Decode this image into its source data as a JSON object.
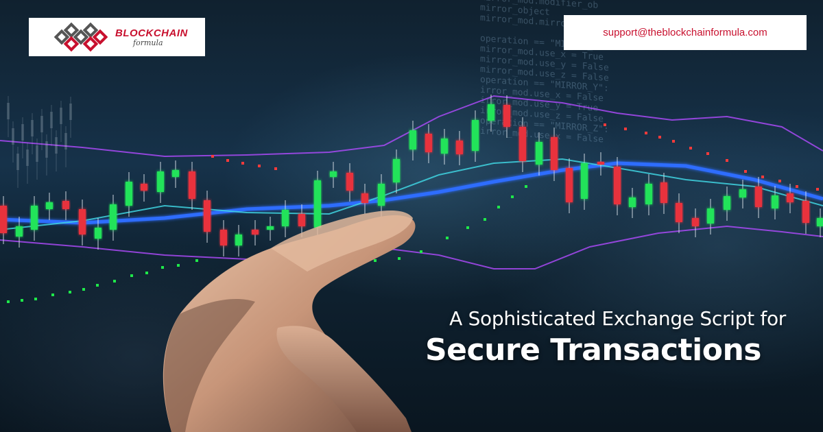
{
  "logo": {
    "main": "BLOCKCHAIN",
    "sub": "formula",
    "brand_color": "#c8102e",
    "icon": "blockchain-links-icon"
  },
  "contact": {
    "email": "support@theblockchainformula.com"
  },
  "headline": {
    "line1": "A Sophisticated Exchange Script for",
    "line2": "Secure Transactions"
  },
  "colors": {
    "bull": "#22e35a",
    "bear": "#e8323c",
    "ma_blue": "#2f6dff",
    "ma_cyan": "#3fd4e0",
    "band_purple": "#b24bff",
    "dot_green": "#1ee84a",
    "dot_red": "#ff3b3b"
  }
}
